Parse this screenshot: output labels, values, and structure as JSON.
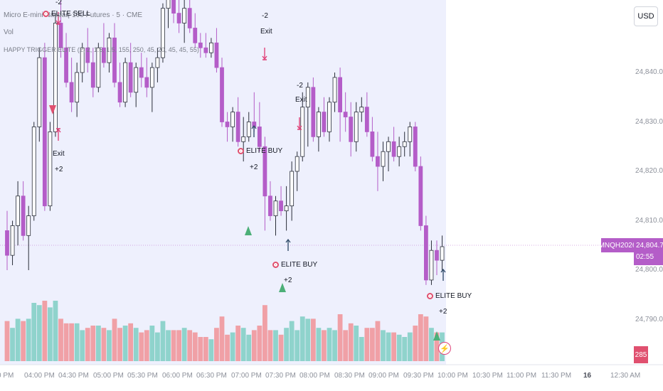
{
  "legend": {
    "symbol_line": "Micro E-mini Nasdaq-100 Futures · 5 · CME",
    "volume_line": "Vol",
    "indicator_line": "HAPPY TRIGGER ELITE (2, 2, 1.5, 1.5, 155, 250, 45, 20, 45, 45, 55)"
  },
  "currency_button": "USD",
  "price_axis": {
    "labels": [
      "24,840.00",
      "24,830.00",
      "24,820.00",
      "24,810.00",
      "24,800.00",
      "24,790.00"
    ],
    "current_price": "24,804.75",
    "countdown": "02:55",
    "symbol_tag": "MNQH2026",
    "volume_value": "285"
  },
  "time_axis": {
    "labels": [
      "0 PM",
      "04:00 PM",
      "04:30 PM",
      "05:00 PM",
      "05:30 PM",
      "06:00 PM",
      "06:30 PM",
      "07:00 PM",
      "07:30 PM",
      "08:00 PM",
      "08:30 PM",
      "09:00 PM",
      "09:30 PM",
      "10:00 PM",
      "10:30 PM",
      "11:00 PM",
      "11:30 PM",
      "16",
      "12:30 AM"
    ]
  },
  "annotations": {
    "sell_label": "ELITE SELL",
    "sell_count": "-2",
    "exit_label": "Exit",
    "plus_two": "+2",
    "minus_two": "-2",
    "buy_label": "ELITE BUY"
  },
  "colors": {
    "bull_candle_fill": "#ffffff",
    "bear_candle_fill": "#b45dc8",
    "candle_border": "#2a2e39",
    "volume_bull": "#8fd3cc",
    "volume_bear": "#f0a0a6",
    "session_bg": "#eef0fd",
    "buy_triangle": "#4caf78",
    "sell_triangle": "#e0506f",
    "exit_arrow": "#e0457b",
    "entry_arrow": "#37516e"
  },
  "icons": {
    "target": "target-icon",
    "lightning": "lightning-icon"
  },
  "chart_data": {
    "type": "candlestick",
    "interval": "5m",
    "price_range": [
      24785,
      24855
    ],
    "candles": [
      {
        "o": 24808,
        "h": 24812,
        "l": 24800,
        "c": 24803
      },
      {
        "o": 24803,
        "h": 24810,
        "l": 24801,
        "c": 24809
      },
      {
        "o": 24809,
        "h": 24818,
        "l": 24805,
        "c": 24815
      },
      {
        "o": 24815,
        "h": 24818,
        "l": 24806,
        "c": 24807
      },
      {
        "o": 24807,
        "h": 24813,
        "l": 24800,
        "c": 24811
      },
      {
        "o": 24811,
        "h": 24830,
        "l": 24810,
        "c": 24829
      },
      {
        "o": 24829,
        "h": 24845,
        "l": 24826,
        "c": 24843
      },
      {
        "o": 24843,
        "h": 24846,
        "l": 24812,
        "c": 24813
      },
      {
        "o": 24813,
        "h": 24830,
        "l": 24812,
        "c": 24828
      },
      {
        "o": 24828,
        "h": 24852,
        "l": 24827,
        "c": 24850
      },
      {
        "o": 24850,
        "h": 24856,
        "l": 24843,
        "c": 24845
      },
      {
        "o": 24845,
        "h": 24848,
        "l": 24837,
        "c": 24838
      },
      {
        "o": 24838,
        "h": 24843,
        "l": 24832,
        "c": 24834
      },
      {
        "o": 24834,
        "h": 24842,
        "l": 24831,
        "c": 24840
      },
      {
        "o": 24840,
        "h": 24846,
        "l": 24838,
        "c": 24845
      },
      {
        "o": 24845,
        "h": 24849,
        "l": 24840,
        "c": 24842
      },
      {
        "o": 24842,
        "h": 24845,
        "l": 24835,
        "c": 24837
      },
      {
        "o": 24837,
        "h": 24846,
        "l": 24836,
        "c": 24845
      },
      {
        "o": 24845,
        "h": 24850,
        "l": 24841,
        "c": 24842
      },
      {
        "o": 24842,
        "h": 24848,
        "l": 24840,
        "c": 24847
      },
      {
        "o": 24847,
        "h": 24850,
        "l": 24837,
        "c": 24838
      },
      {
        "o": 24838,
        "h": 24842,
        "l": 24833,
        "c": 24834
      },
      {
        "o": 24834,
        "h": 24843,
        "l": 24833,
        "c": 24842
      },
      {
        "o": 24842,
        "h": 24846,
        "l": 24835,
        "c": 24836
      },
      {
        "o": 24836,
        "h": 24842,
        "l": 24833,
        "c": 24841
      },
      {
        "o": 24841,
        "h": 24844,
        "l": 24837,
        "c": 24839
      },
      {
        "o": 24839,
        "h": 24843,
        "l": 24835,
        "c": 24837
      },
      {
        "o": 24837,
        "h": 24842,
        "l": 24832,
        "c": 24841
      },
      {
        "o": 24841,
        "h": 24845,
        "l": 24838,
        "c": 24843
      },
      {
        "o": 24843,
        "h": 24854,
        "l": 24842,
        "c": 24853
      },
      {
        "o": 24853,
        "h": 24857,
        "l": 24849,
        "c": 24855
      },
      {
        "o": 24855,
        "h": 24858,
        "l": 24850,
        "c": 24852
      },
      {
        "o": 24852,
        "h": 24856,
        "l": 24848,
        "c": 24850
      },
      {
        "o": 24850,
        "h": 24855,
        "l": 24846,
        "c": 24853
      },
      {
        "o": 24853,
        "h": 24856,
        "l": 24848,
        "c": 24849
      },
      {
        "o": 24849,
        "h": 24852,
        "l": 24845,
        "c": 24846
      },
      {
        "o": 24846,
        "h": 24848,
        "l": 24843,
        "c": 24845
      },
      {
        "o": 24845,
        "h": 24848,
        "l": 24843,
        "c": 24844
      },
      {
        "o": 24844,
        "h": 24847,
        "l": 24843,
        "c": 24846
      },
      {
        "o": 24846,
        "h": 24849,
        "l": 24840,
        "c": 24841
      },
      {
        "o": 24841,
        "h": 24843,
        "l": 24829,
        "c": 24830
      },
      {
        "o": 24830,
        "h": 24832,
        "l": 24826,
        "c": 24829
      },
      {
        "o": 24829,
        "h": 24833,
        "l": 24826,
        "c": 24832
      },
      {
        "o": 24832,
        "h": 24835,
        "l": 24825,
        "c": 24826
      },
      {
        "o": 24826,
        "h": 24831,
        "l": 24822,
        "c": 24827
      },
      {
        "o": 24827,
        "h": 24832,
        "l": 24826,
        "c": 24830
      },
      {
        "o": 24830,
        "h": 24836,
        "l": 24828,
        "c": 24829
      },
      {
        "o": 24829,
        "h": 24834,
        "l": 24824,
        "c": 24825
      },
      {
        "o": 24825,
        "h": 24827,
        "l": 24808,
        "c": 24815
      },
      {
        "o": 24815,
        "h": 24818,
        "l": 24810,
        "c": 24811
      },
      {
        "o": 24811,
        "h": 24815,
        "l": 24807,
        "c": 24814
      },
      {
        "o": 24814,
        "h": 24817,
        "l": 24811,
        "c": 24812
      },
      {
        "o": 24812,
        "h": 24817,
        "l": 24808,
        "c": 24813
      },
      {
        "o": 24813,
        "h": 24822,
        "l": 24810,
        "c": 24820
      },
      {
        "o": 24820,
        "h": 24824,
        "l": 24816,
        "c": 24823
      },
      {
        "o": 24823,
        "h": 24836,
        "l": 24822,
        "c": 24833
      },
      {
        "o": 24833,
        "h": 24838,
        "l": 24825,
        "c": 24837
      },
      {
        "o": 24837,
        "h": 24839,
        "l": 24826,
        "c": 24827
      },
      {
        "o": 24827,
        "h": 24833,
        "l": 24824,
        "c": 24832
      },
      {
        "o": 24832,
        "h": 24835,
        "l": 24827,
        "c": 24828
      },
      {
        "o": 24828,
        "h": 24835,
        "l": 24826,
        "c": 24834
      },
      {
        "o": 24834,
        "h": 24840,
        "l": 24832,
        "c": 24839
      },
      {
        "o": 24839,
        "h": 24841,
        "l": 24826,
        "c": 24832
      },
      {
        "o": 24832,
        "h": 24836,
        "l": 24828,
        "c": 24831
      },
      {
        "o": 24831,
        "h": 24834,
        "l": 24823,
        "c": 24826
      },
      {
        "o": 24826,
        "h": 24834,
        "l": 24824,
        "c": 24832
      },
      {
        "o": 24832,
        "h": 24835,
        "l": 24830,
        "c": 24833
      },
      {
        "o": 24833,
        "h": 24836,
        "l": 24827,
        "c": 24828
      },
      {
        "o": 24828,
        "h": 24831,
        "l": 24822,
        "c": 24823
      },
      {
        "o": 24823,
        "h": 24828,
        "l": 24816,
        "c": 24821
      },
      {
        "o": 24821,
        "h": 24826,
        "l": 24818,
        "c": 24824
      },
      {
        "o": 24824,
        "h": 24827,
        "l": 24820,
        "c": 24826
      },
      {
        "o": 24826,
        "h": 24829,
        "l": 24822,
        "c": 24823
      },
      {
        "o": 24823,
        "h": 24827,
        "l": 24821,
        "c": 24825
      },
      {
        "o": 24825,
        "h": 24828,
        "l": 24823,
        "c": 24826
      },
      {
        "o": 24826,
        "h": 24830,
        "l": 24823,
        "c": 24829
      },
      {
        "o": 24829,
        "h": 24830,
        "l": 24820,
        "c": 24821
      },
      {
        "o": 24821,
        "h": 24823,
        "l": 24808,
        "c": 24809
      },
      {
        "o": 24809,
        "h": 24811,
        "l": 24797,
        "c": 24798
      },
      {
        "o": 24798,
        "h": 24806,
        "l": 24797,
        "c": 24804
      },
      {
        "o": 24804,
        "h": 24806,
        "l": 24799,
        "c": 24802
      },
      {
        "o": 24802,
        "h": 24807,
        "l": 24800,
        "c": 24804.75
      }
    ],
    "volume_sample": [
      285
    ]
  }
}
